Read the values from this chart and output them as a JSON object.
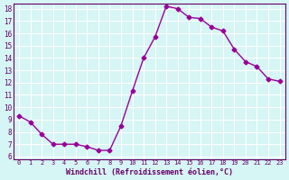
{
  "x": [
    0,
    1,
    2,
    3,
    4,
    5,
    6,
    7,
    8,
    9,
    10,
    11,
    12,
    13,
    14,
    15,
    16,
    17,
    18,
    19,
    20,
    21,
    22,
    23
  ],
  "y": [
    9.3,
    8.8,
    7.8,
    7.0,
    7.0,
    7.0,
    6.8,
    6.5,
    6.5,
    8.5,
    11.3,
    14.0,
    15.7,
    18.2,
    18.0,
    17.3,
    17.2,
    16.5,
    16.2,
    14.7,
    13.7,
    13.3,
    12.3,
    12.1
  ],
  "xlabel": "Windchill (Refroidissement éolien,°C)",
  "ylim": [
    6,
    18
  ],
  "xlim": [
    -0.5,
    23.5
  ],
  "yticks": [
    6,
    7,
    8,
    9,
    10,
    11,
    12,
    13,
    14,
    15,
    16,
    17,
    18
  ],
  "xticks": [
    0,
    1,
    2,
    3,
    4,
    5,
    6,
    7,
    8,
    9,
    10,
    11,
    12,
    13,
    14,
    15,
    16,
    17,
    18,
    19,
    20,
    21,
    22,
    23
  ],
  "line_color": "#990099",
  "marker": "D",
  "marker_size": 2.5,
  "bg_color": "#d6f5f5",
  "grid_color": "#ffffff",
  "label_color": "#660066",
  "tick_color": "#660066"
}
